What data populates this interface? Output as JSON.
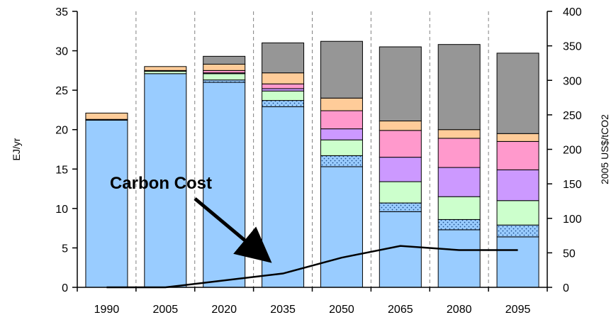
{
  "chart_data": {
    "type": "bar",
    "stacked": true,
    "title": "",
    "categories": [
      "1990",
      "2005",
      "2020",
      "2035",
      "2050",
      "2065",
      "2080",
      "2095"
    ],
    "ylabel": "EJ/yr",
    "ylim": [
      0,
      35
    ],
    "yticks": [
      0,
      5,
      10,
      15,
      20,
      25,
      30,
      35
    ],
    "y2label": "2005 US$/tCO2",
    "y2lim": [
      0,
      400
    ],
    "y2ticks": [
      0,
      50,
      100,
      150,
      200,
      250,
      300,
      350,
      400
    ],
    "grid": "vertical dashed",
    "legend": "none",
    "series": [
      {
        "color": "#99ccff",
        "pattern": "none",
        "values": [
          21.2,
          27.1,
          26.0,
          22.9,
          15.3,
          9.6,
          7.3,
          6.4
        ]
      },
      {
        "color": "#99ccff",
        "pattern": "dots",
        "values": [
          0.1,
          0.0,
          0.3,
          0.8,
          1.4,
          1.1,
          1.3,
          1.5
        ]
      },
      {
        "color": "#ccffcc",
        "pattern": "none",
        "values": [
          0.0,
          0.3,
          0.8,
          1.2,
          2.0,
          2.7,
          2.9,
          3.1
        ]
      },
      {
        "color": "#cc99ff",
        "pattern": "none",
        "values": [
          0.0,
          0.0,
          0.1,
          0.3,
          1.4,
          3.1,
          3.7,
          3.9
        ]
      },
      {
        "color": "#ff99cc",
        "pattern": "none",
        "values": [
          0.0,
          0.1,
          0.3,
          0.6,
          2.3,
          3.4,
          3.7,
          3.6
        ]
      },
      {
        "color": "#ffcc99",
        "pattern": "none",
        "values": [
          0.8,
          0.5,
          0.8,
          1.4,
          1.6,
          1.2,
          1.1,
          1.0
        ]
      },
      {
        "color": "#969696",
        "pattern": "none",
        "values": [
          0.0,
          0.0,
          1.0,
          3.8,
          7.2,
          9.4,
          10.8,
          10.2
        ]
      }
    ],
    "line": {
      "color": "#000000",
      "axis": "right",
      "values": [
        0,
        0,
        10,
        20,
        43,
        60,
        54,
        54
      ]
    },
    "annotation": {
      "text": "Carbon Cost"
    }
  }
}
